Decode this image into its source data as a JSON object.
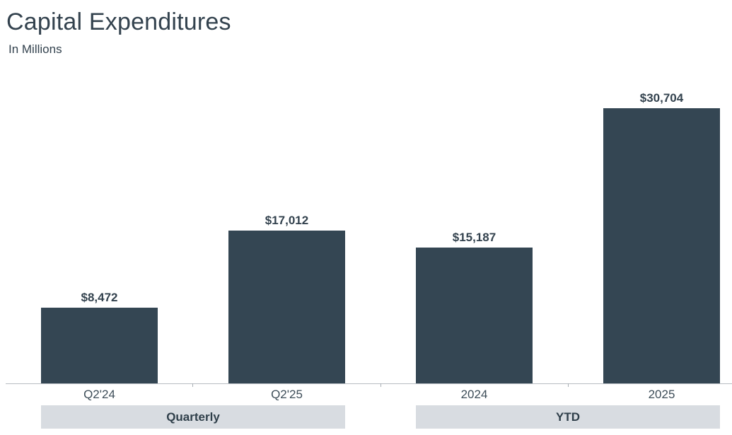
{
  "header": {
    "title": "Capital Expenditures",
    "subtitle": "In Millions"
  },
  "chart_data": {
    "type": "bar",
    "title": "Capital Expenditures",
    "subtitle": "In Millions",
    "units": "USD millions",
    "categories": [
      "Q2'24",
      "Q2'25",
      "2024",
      "2025"
    ],
    "values": [
      8472,
      17012,
      15187,
      30704
    ],
    "value_labels": [
      "$8,472",
      "$17,012",
      "$15,187",
      "$30,704"
    ],
    "groups": [
      {
        "label": "Quarterly",
        "categories": [
          "Q2'24",
          "Q2'25"
        ]
      },
      {
        "label": "YTD",
        "categories": [
          "2024",
          "2025"
        ]
      }
    ],
    "ylim": [
      0,
      30704
    ],
    "grid": false,
    "legend": false,
    "axis_labels_position": "bottom",
    "bar_color": "#344653",
    "band_color": "#d8dce1",
    "axis_color": "#b7bdc2",
    "text_color": "#33424e"
  }
}
